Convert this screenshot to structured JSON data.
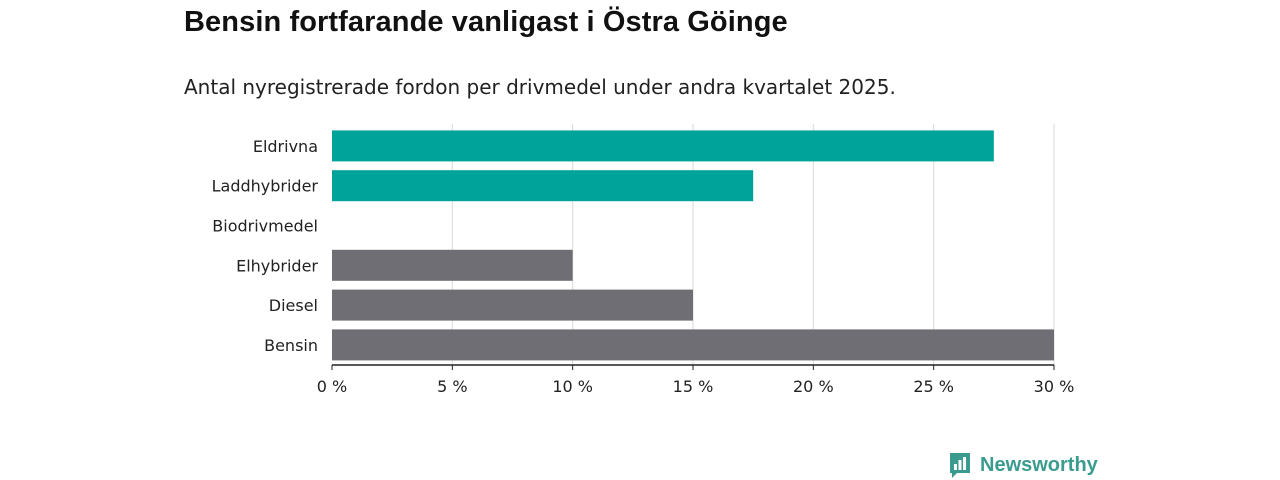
{
  "header": {
    "title": "Bensin fortfarande vanligast i Östra Göinge",
    "subtitle": "Antal nyregistrerade fordon per drivmedel under andra kvartalet 2025."
  },
  "brand": {
    "name": "Newsworthy",
    "icon": "newsworthy-logo-icon",
    "color": "#3a9b8e"
  },
  "chart_data": {
    "type": "bar",
    "orientation": "horizontal",
    "categories": [
      "Eldrivna",
      "Laddhybrider",
      "Biodrivmedel",
      "Elhybrider",
      "Diesel",
      "Bensin"
    ],
    "values": [
      27.5,
      17.5,
      0,
      10,
      15,
      30
    ],
    "colors": [
      "#00a39a",
      "#00a39a",
      "#00a39a",
      "#6f6e74",
      "#6f6e74",
      "#6f6e74"
    ],
    "xlim": [
      0,
      30
    ],
    "xticks": [
      0,
      5,
      10,
      15,
      20,
      25,
      30
    ],
    "xtick_labels": [
      "0 %",
      "5 %",
      "10 %",
      "15 %",
      "20 %",
      "25 %",
      "30 %"
    ],
    "grid": true
  }
}
